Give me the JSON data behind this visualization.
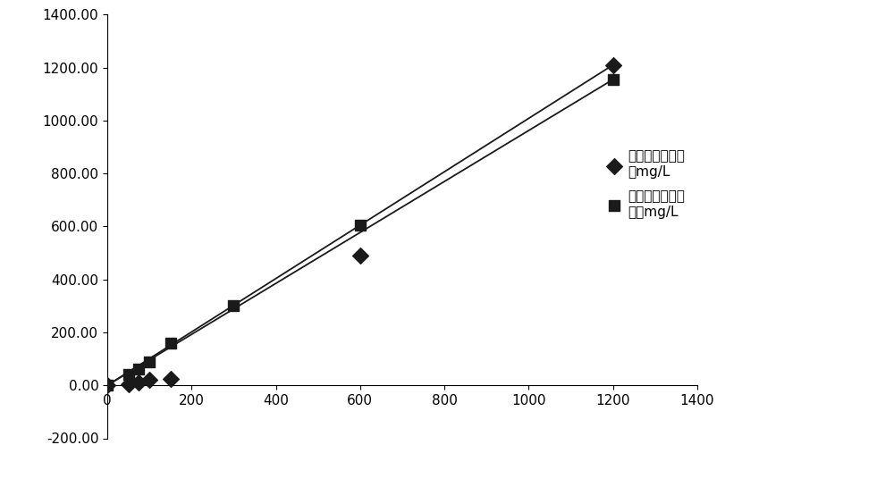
{
  "series1_name": "对照试剂检测结\n果mg/L",
  "series2_name": "本发明试剂检测\n结果mg/L",
  "series1_x": [
    0,
    50,
    75,
    100,
    150,
    600,
    1200
  ],
  "series1_y": [
    0,
    5,
    10,
    20,
    25,
    490,
    1210
  ],
  "series2_x": [
    0,
    50,
    75,
    100,
    150,
    300,
    600,
    1200
  ],
  "series2_y": [
    0,
    40,
    60,
    90,
    160,
    300,
    605,
    1155
  ],
  "series1_trendline_x": [
    0,
    1200
  ],
  "series1_trendline_y": [
    0,
    1210
  ],
  "series2_trendline_x": [
    0,
    1200
  ],
  "series2_trendline_y": [
    0,
    1155
  ],
  "xlim": [
    0,
    1400
  ],
  "ylim": [
    -200,
    1400
  ],
  "xticks": [
    0,
    200,
    400,
    600,
    800,
    1000,
    1200,
    1400
  ],
  "yticks": [
    -200.0,
    0.0,
    200.0,
    400.0,
    600.0,
    800.0,
    1000.0,
    1200.0,
    1400.0
  ],
  "marker1": "D",
  "marker2": "s",
  "marker_color": "#1a1a1a",
  "line_color": "#1a1a1a",
  "marker_size1": 9,
  "marker_size2": 8,
  "bg_color": "#ffffff",
  "tick_fontsize": 11,
  "legend_fontsize": 11
}
